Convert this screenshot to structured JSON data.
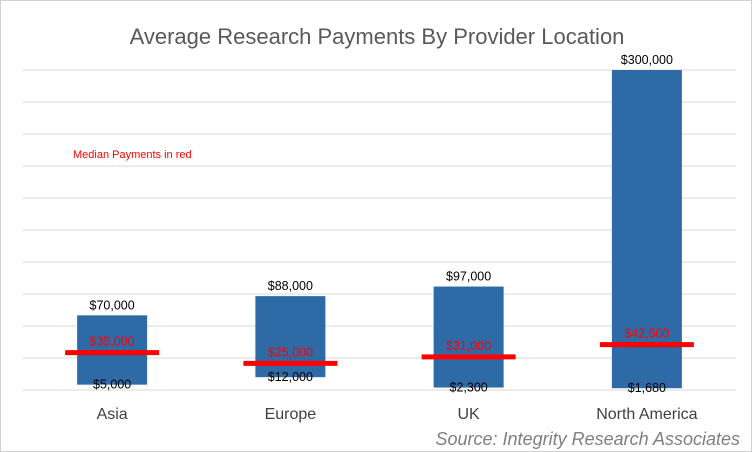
{
  "chart_data": {
    "type": "bar",
    "subtype": "floating-range with median markers",
    "title": "Average Research Payments By Provider Location",
    "categories": [
      "Asia",
      "Europe",
      "UK",
      "North America"
    ],
    "series": [
      {
        "values_low": [
          5000,
          12000,
          2300,
          1680
        ]
      },
      {
        "values_high": [
          70000,
          88000,
          97000,
          300000
        ]
      },
      {
        "values_median": [
          35000,
          25000,
          31000,
          42500
        ]
      }
    ],
    "low_labels": [
      "$5,000",
      "$12,000",
      "$2,300",
      "$1,680"
    ],
    "high_labels": [
      "$70,000",
      "$88,000",
      "$97,000",
      "$300,000"
    ],
    "median_labels": [
      "$35,000",
      "$25,000",
      "$31,000",
      "$42,500"
    ],
    "annotation": "Median Payments in red",
    "source": "Source: Integrity Research Associates",
    "ylim": [
      0,
      300000
    ],
    "grid": true,
    "legend": "none",
    "colors": {
      "bar": "#2e6aa6",
      "median": "#ff0000",
      "grid": "#d9d9d9"
    }
  }
}
